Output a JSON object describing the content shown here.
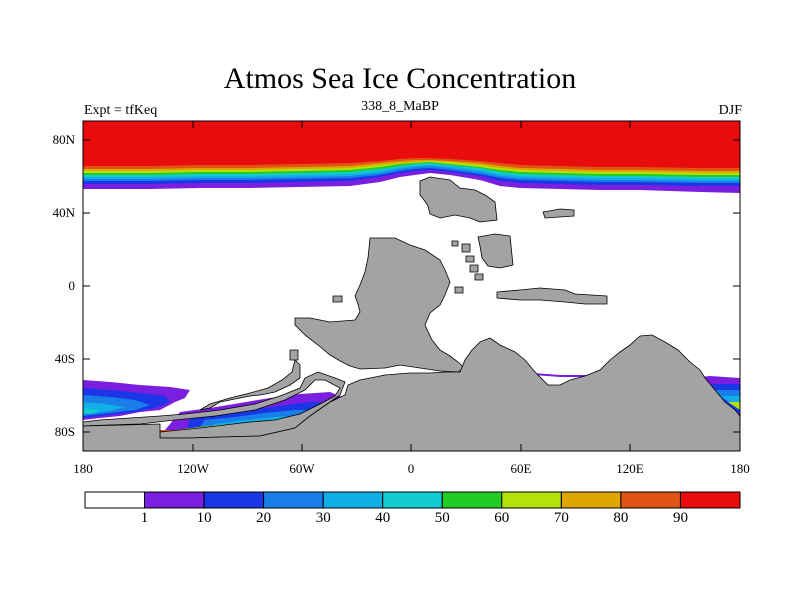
{
  "title": "Atmos Sea Ice Concentration",
  "left_label": "Expt = tfKeq",
  "subtitle": "338_8_MaBP",
  "right_label": "DJF",
  "map": {
    "projection": "cylindrical equidistant",
    "lon_range": [
      -180,
      180
    ],
    "lat_range": [
      -90,
      90
    ],
    "land_color": "#a3a3a3",
    "ocean_color": "#ffffff",
    "lat_ticks": [
      "80N",
      "40N",
      "0",
      "40S",
      "80S"
    ],
    "lon_ticks": [
      "180",
      "120W",
      "60W",
      "0",
      "60E",
      "120E",
      "180"
    ]
  },
  "colorbar": {
    "levels": [
      "1",
      "10",
      "20",
      "30",
      "40",
      "50",
      "60",
      "70",
      "80",
      "90"
    ],
    "colors": [
      "#ffffff",
      "#7a1fe0",
      "#1a36e6",
      "#1a7ee8",
      "#12aee6",
      "#12ccd0",
      "#22cc22",
      "#b4e00c",
      "#e0a600",
      "#e05414",
      "#e80c0c"
    ]
  }
}
